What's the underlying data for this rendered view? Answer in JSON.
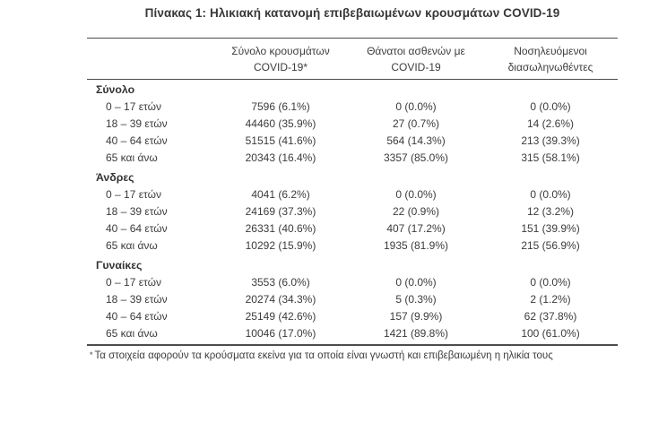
{
  "title": "Πίνακας 1: Ηλικιακή κατανομή επιβεβαιωμένων κρουσμάτων COVID-19",
  "table": {
    "columns": [
      {
        "line1": "Σύνολο κρουσμάτων",
        "line2": "COVID-19*"
      },
      {
        "line1": "Θάνατοι ασθενών με",
        "line2": "COVID-19"
      },
      {
        "line1": "Νοσηλευόμενοι",
        "line2": "διασωληνωθέντες"
      }
    ],
    "sections": [
      {
        "label": "Σύνολο",
        "rows": [
          {
            "age": "0 – 17 ετών",
            "cases": "7596 (6.1%)",
            "deaths": "0 (0.0%)",
            "intubated": "0 (0.0%)"
          },
          {
            "age": "18 – 39 ετών",
            "cases": "44460 (35.9%)",
            "deaths": "27 (0.7%)",
            "intubated": "14 (2.6%)"
          },
          {
            "age": "40 – 64 ετών",
            "cases": "51515 (41.6%)",
            "deaths": "564 (14.3%)",
            "intubated": "213 (39.3%)"
          },
          {
            "age": "65 και άνω",
            "cases": "20343 (16.4%)",
            "deaths": "3357 (85.0%)",
            "intubated": "315 (58.1%)"
          }
        ]
      },
      {
        "label": "Άνδρες",
        "rows": [
          {
            "age": "0 – 17 ετών",
            "cases": "4041 (6.2%)",
            "deaths": "0 (0.0%)",
            "intubated": "0 (0.0%)"
          },
          {
            "age": "18 – 39 ετών",
            "cases": "24169 (37.3%)",
            "deaths": "22 (0.9%)",
            "intubated": "12 (3.2%)"
          },
          {
            "age": "40 – 64 ετών",
            "cases": "26331 (40.6%)",
            "deaths": "407 (17.2%)",
            "intubated": "151 (39.9%)"
          },
          {
            "age": "65 και άνω",
            "cases": "10292 (15.9%)",
            "deaths": "1935 (81.9%)",
            "intubated": "215 (56.9%)"
          }
        ]
      },
      {
        "label": "Γυναίκες",
        "rows": [
          {
            "age": "0 – 17 ετών",
            "cases": "3553 (6.0%)",
            "deaths": "0 (0.0%)",
            "intubated": "0 (0.0%)"
          },
          {
            "age": "18 – 39 ετών",
            "cases": "20274 (34.3%)",
            "deaths": "5 (0.3%)",
            "intubated": "2 (1.2%)"
          },
          {
            "age": "40 – 64 ετών",
            "cases": "25149 (42.6%)",
            "deaths": "157 (9.9%)",
            "intubated": "62 (37.8%)"
          },
          {
            "age": "65 και άνω",
            "cases": "10046 (17.0%)",
            "deaths": "1421 (89.8%)",
            "intubated": "100 (61.0%)"
          }
        ]
      }
    ],
    "footnote_marker": "*",
    "footnote": "Τα στοιχεία αφορούν τα κρούσματα εκείνα για τα οποία είναι γνωστή και επιβεβαιωμένη η ηλικία τους"
  },
  "colors": {
    "text": "#3b3b3b",
    "rule": "#4c4c4c",
    "background": "#ffffff"
  }
}
